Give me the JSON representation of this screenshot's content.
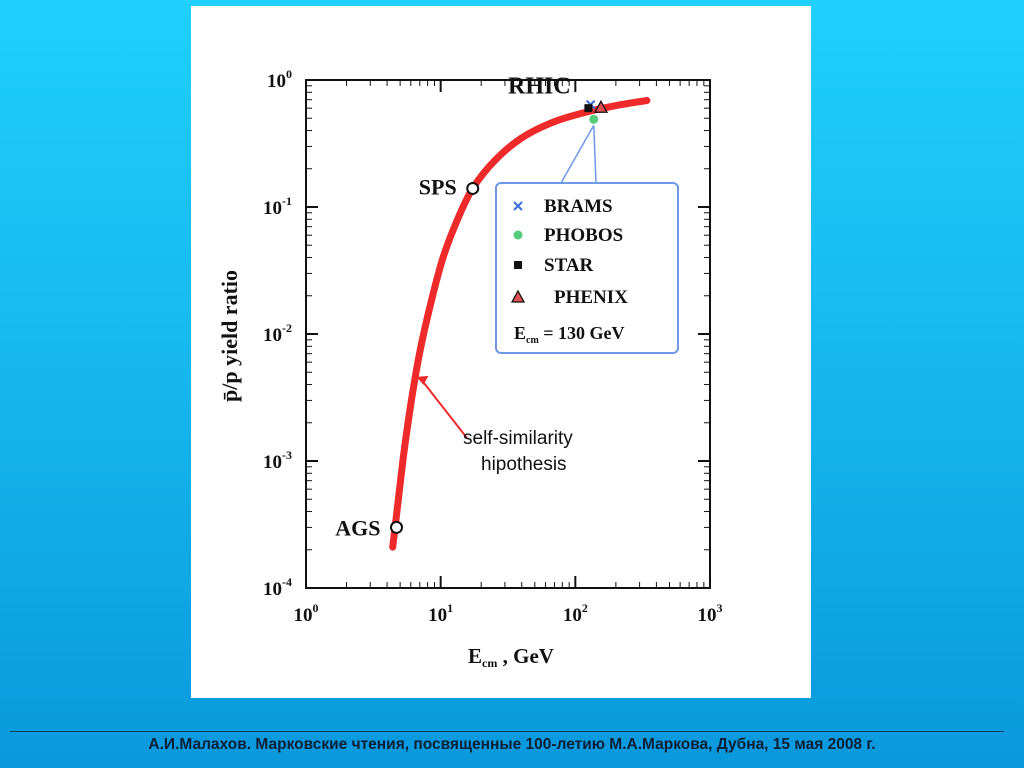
{
  "chart_data": {
    "type": "scatter",
    "xlabel_main": "E",
    "xlabel_sub": "cm",
    "xlabel_rest": " ,  GeV",
    "ylabel": "p̄/p   yield  ratio",
    "x_scale": "log",
    "y_scale": "log",
    "xlim": [
      1,
      1000
    ],
    "ylim": [
      0.0001,
      1
    ],
    "grid": false,
    "x_ticks": [
      {
        "value": 1,
        "base": "10",
        "exp": "0"
      },
      {
        "value": 10,
        "base": "10",
        "exp": "1"
      },
      {
        "value": 100,
        "base": "10",
        "exp": "2"
      },
      {
        "value": 1000,
        "base": "10",
        "exp": "3"
      }
    ],
    "y_ticks": [
      {
        "value": 1,
        "base": "10",
        "exp": "0"
      },
      {
        "value": 0.1,
        "base": "10",
        "exp": "-1"
      },
      {
        "value": 0.01,
        "base": "10",
        "exp": "-2"
      },
      {
        "value": 0.001,
        "base": "10",
        "exp": "-3"
      },
      {
        "value": 0.0001,
        "base": "10",
        "exp": "-4"
      }
    ],
    "curve": {
      "name": "self-similarity hipothesis",
      "color": "#ee2a2a",
      "x": [
        4.4,
        4.8,
        5.3,
        6.0,
        7.0,
        8.5,
        10.5,
        13.5,
        17.3,
        25,
        40,
        70,
        130,
        220,
        340
      ],
      "y": [
        0.00021,
        0.00045,
        0.0011,
        0.0028,
        0.0072,
        0.018,
        0.041,
        0.082,
        0.14,
        0.23,
        0.35,
        0.47,
        0.57,
        0.64,
        0.69
      ]
    },
    "series": [
      {
        "name": "AGS",
        "marker": "open-circle",
        "x": [
          4.7
        ],
        "y": [
          0.0003
        ]
      },
      {
        "name": "SPS",
        "marker": "open-circle",
        "x": [
          17.3
        ],
        "y": [
          0.14
        ]
      },
      {
        "name": "BRAMS",
        "marker": "x",
        "color": "#3a6fe0",
        "x": [
          130
        ],
        "y": [
          0.64
        ]
      },
      {
        "name": "PHOBOS",
        "marker": "dot",
        "color": "#55cc7a",
        "x": [
          137
        ],
        "y": [
          0.49
        ]
      },
      {
        "name": "STAR",
        "marker": "square",
        "color": "#111111",
        "x": [
          125
        ],
        "y": [
          0.6
        ]
      },
      {
        "name": "PHENIX",
        "marker": "triangle",
        "color": "#e05050",
        "x": [
          155
        ],
        "y": [
          0.61
        ]
      }
    ],
    "labels": {
      "ags": "AGS",
      "sps": "SPS",
      "rhic": "RHIC",
      "curve_line1": "self-similarity",
      "curve_line2": "hipothesis"
    },
    "legend": {
      "placement": "right",
      "items": [
        {
          "label": "BRAMS",
          "marker": "x",
          "color": "#3a6fe0"
        },
        {
          "label": "PHOBOS",
          "marker": "dot",
          "color": "#55cc7a"
        },
        {
          "label": "STAR",
          "marker": "square",
          "color": "#111111"
        },
        {
          "label": "PHENIX",
          "marker": "triangle",
          "color": "#e05050"
        }
      ],
      "note_main": "E",
      "note_sub": "cm",
      "note_rest": " = 130 GeV",
      "border_color": "#6f98e6"
    }
  },
  "footer": {
    "text": "А.И.Малахов. Марковские чтения, посвященные 100-летию М.А.Маркова, Дубна, 15 мая 2008 г."
  },
  "colors": {
    "background_top": "#1fd0fc",
    "background_bottom": "#0a98dc",
    "panel": "#ffffff"
  }
}
